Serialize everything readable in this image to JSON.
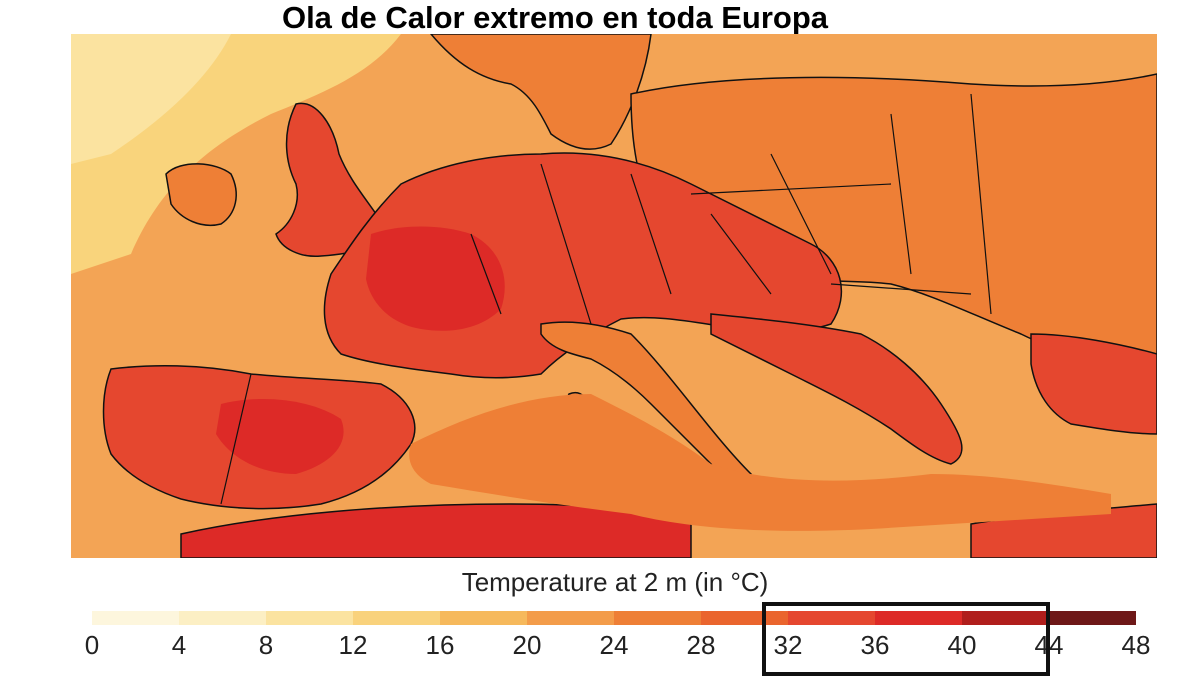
{
  "title": "Ola de Calor extremo en toda Europa",
  "legend": {
    "title": "Temperature at 2 m (in °C)",
    "ticks": [
      "0",
      "4",
      "8",
      "12",
      "16",
      "20",
      "24",
      "28",
      "32",
      "36",
      "40",
      "44",
      "48"
    ],
    "color_steps": [
      "#fdf6dd",
      "#fcefc4",
      "#fbe3a0",
      "#f9d27c",
      "#f6b95c",
      "#f39c4a",
      "#ee7f36",
      "#ea652e",
      "#e5472f",
      "#dd2a27",
      "#b01e1c",
      "#6e1818"
    ],
    "highlighted_range": [
      "32",
      "44"
    ]
  },
  "map": {
    "region": "Europe",
    "variable": "Temperature at 2 m",
    "colors": {
      "sea_cool": "#f9d47c",
      "sea_warm": "#f3a455",
      "land_warm": "#ee7f36",
      "land_hot": "#e5472f",
      "land_extreme": "#dd2a27",
      "border": "#111111"
    }
  }
}
